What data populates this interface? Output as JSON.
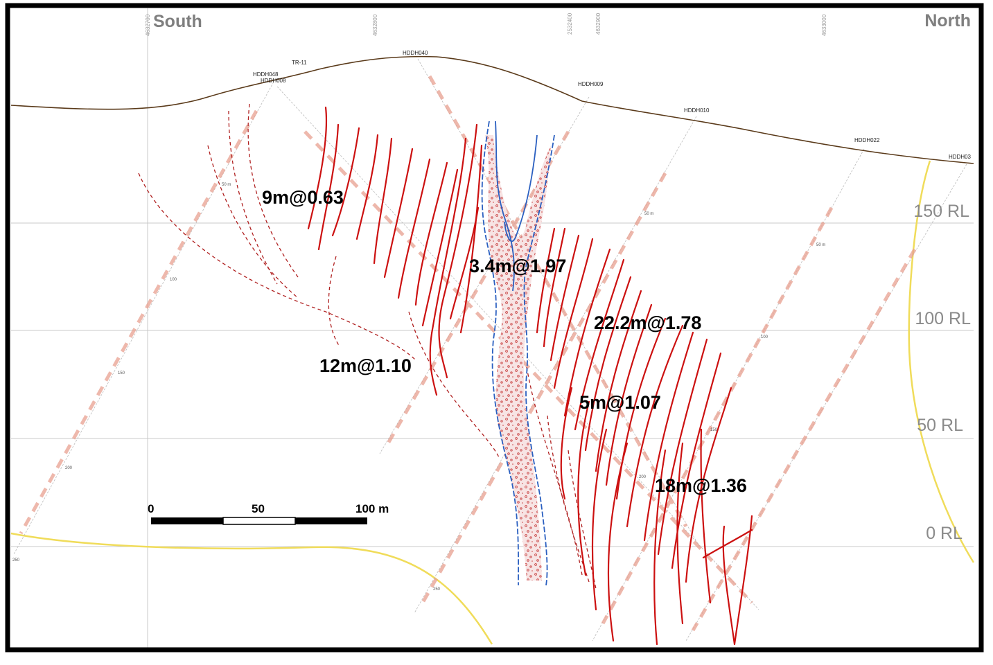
{
  "directions": {
    "left": "South",
    "right": "North"
  },
  "easting_labels": [
    "4632700",
    "4632800",
    "2532400",
    "4632900",
    "4633000"
  ],
  "rl_labels": [
    "150 RL",
    "100 RL",
    "50 RL",
    "0 RL"
  ],
  "drillholes": [
    "TR-11",
    "HDDH040",
    "HDDH048",
    "HDDH008",
    "HDDH009",
    "HDDH010",
    "HDDH022",
    "HDDH03"
  ],
  "depth_ticks": [
    "50 m",
    "100",
    "150",
    "200",
    "250"
  ],
  "intercepts": [
    "9m@0.63",
    "3.4m@1.97",
    "22.2m@1.78",
    "12m@1.10",
    "5m@1.07",
    "18m@1.36"
  ],
  "scale_bar": {
    "labels": [
      "0",
      "50",
      "100 m"
    ]
  },
  "colors": {
    "topography": "#5a3a1a",
    "veins": "#cc1010",
    "dyke_outline": "#2a5fc0",
    "dyke_fill": "#f6dede",
    "dyke_speckle": "#c84040",
    "gridlines": "#c8c8c8",
    "yellow_contour": "#f0dc5a",
    "drill_trace": "#e8a090",
    "frame": "#000000"
  }
}
